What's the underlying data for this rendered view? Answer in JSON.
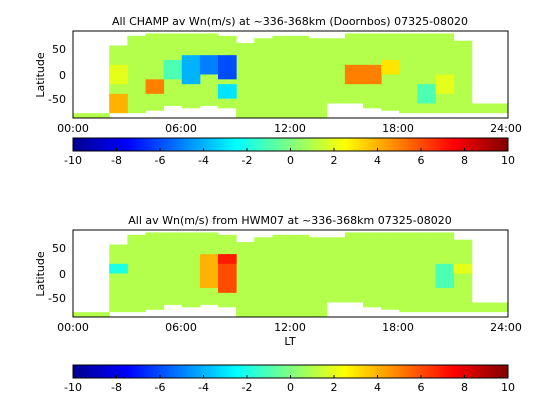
{
  "chart_data": [
    {
      "type": "heatmap",
      "title": "All CHAMP av Wn(m/s) at ~336-368km (Doornbos) 07325-08020",
      "xlabel": "",
      "ylabel": "Latitude",
      "xlim": [
        0,
        24
      ],
      "ylim": [
        -90,
        90
      ],
      "x_ticks": [
        "00:00",
        "06:00",
        "12:00",
        "18:00",
        "24:00"
      ],
      "y_ticks": [
        "-50",
        "0",
        "50"
      ],
      "colorbar": {
        "clim": [
          -10,
          10
        ],
        "ticks": [
          "-10",
          "-8",
          "-6",
          "-4",
          "-2",
          "0",
          "2",
          "4",
          "6",
          "8",
          "10"
        ]
      },
      "hours": [
        1,
        2,
        3,
        4,
        5,
        6,
        7,
        8,
        9,
        10,
        11,
        12,
        13,
        14,
        15,
        16,
        17,
        18,
        19,
        20,
        21,
        22,
        23,
        24
      ],
      "lat_extent": [
        [
          -90,
          -80
        ],
        [
          -90,
          -80
        ],
        [
          -80,
          60
        ],
        [
          -80,
          80
        ],
        [
          -75,
          85
        ],
        [
          -65,
          85
        ],
        [
          -70,
          85
        ],
        [
          -65,
          85
        ],
        [
          -70,
          80
        ],
        [
          -90,
          65
        ],
        [
          -90,
          75
        ],
        [
          -90,
          80
        ],
        [
          -90,
          80
        ],
        [
          -90,
          75
        ],
        [
          -60,
          75
        ],
        [
          -60,
          85
        ],
        [
          -70,
          85
        ],
        [
          -75,
          85
        ],
        [
          -80,
          85
        ],
        [
          -80,
          85
        ],
        [
          -80,
          85
        ],
        [
          -80,
          70
        ],
        [
          -80,
          -60
        ],
        [
          -80,
          -60
        ]
      ],
      "cells": [
        {
          "h": 3,
          "lat": [
            -80,
            -40
          ],
          "v": 4
        },
        {
          "h": 3,
          "lat": [
            -20,
            20
          ],
          "v": 2
        },
        {
          "h": 5,
          "lat": [
            -40,
            -10
          ],
          "v": 5
        },
        {
          "h": 6,
          "lat": [
            -10,
            30
          ],
          "v": -1
        },
        {
          "h": 7,
          "lat": [
            -20,
            40
          ],
          "v": -4
        },
        {
          "h": 8,
          "lat": [
            0,
            40
          ],
          "v": -5
        },
        {
          "h": 9,
          "lat": [
            -10,
            40
          ],
          "v": -6
        },
        {
          "h": 9,
          "lat": [
            -50,
            -20
          ],
          "v": -3
        },
        {
          "h": 16,
          "lat": [
            -20,
            20
          ],
          "v": 5
        },
        {
          "h": 17,
          "lat": [
            -20,
            20
          ],
          "v": 5
        },
        {
          "h": 18,
          "lat": [
            0,
            30
          ],
          "v": 3
        },
        {
          "h": 20,
          "lat": [
            -60,
            -20
          ],
          "v": -1
        },
        {
          "h": 21,
          "lat": [
            -40,
            0
          ],
          "v": 2
        }
      ]
    },
    {
      "type": "heatmap",
      "title": "All av Wn(m/s) from HWM07 at ~336-368km 07325-08020",
      "xlabel": "LT",
      "ylabel": "Latitude",
      "xlim": [
        0,
        24
      ],
      "ylim": [
        -90,
        90
      ],
      "x_ticks": [
        "00:00",
        "06:00",
        "12:00",
        "18:00",
        "24:00"
      ],
      "y_ticks": [
        "-50",
        "0",
        "50"
      ],
      "colorbar": {
        "clim": [
          -10,
          10
        ],
        "ticks": [
          "-10",
          "-8",
          "-6",
          "-4",
          "-2",
          "0",
          "2",
          "4",
          "6",
          "8",
          "10"
        ]
      },
      "hours": [
        1,
        2,
        3,
        4,
        5,
        6,
        7,
        8,
        9,
        10,
        11,
        12,
        13,
        14,
        15,
        16,
        17,
        18,
        19,
        20,
        21,
        22,
        23,
        24
      ],
      "lat_extent": [
        [
          -90,
          -80
        ],
        [
          -90,
          -80
        ],
        [
          -80,
          60
        ],
        [
          -80,
          80
        ],
        [
          -75,
          85
        ],
        [
          -65,
          85
        ],
        [
          -70,
          85
        ],
        [
          -65,
          85
        ],
        [
          -70,
          80
        ],
        [
          -90,
          65
        ],
        [
          -90,
          75
        ],
        [
          -90,
          80
        ],
        [
          -90,
          80
        ],
        [
          -90,
          75
        ],
        [
          -60,
          75
        ],
        [
          -60,
          85
        ],
        [
          -70,
          85
        ],
        [
          -75,
          85
        ],
        [
          -80,
          85
        ],
        [
          -80,
          85
        ],
        [
          -80,
          85
        ],
        [
          -80,
          70
        ],
        [
          -80,
          -60
        ],
        [
          -80,
          -60
        ]
      ],
      "cells": [
        {
          "h": 3,
          "lat": [
            0,
            20
          ],
          "v": -2
        },
        {
          "h": 5,
          "lat": [
            -20,
            20
          ],
          "v": 1
        },
        {
          "h": 7,
          "lat": [
            -40,
            40
          ],
          "v": 1
        },
        {
          "h": 8,
          "lat": [
            -30,
            40
          ],
          "v": 4
        },
        {
          "h": 9,
          "lat": [
            -40,
            40
          ],
          "v": 6
        },
        {
          "h": 9,
          "lat": [
            20,
            40
          ],
          "v": 7
        },
        {
          "h": 18,
          "lat": [
            0,
            30
          ],
          "v": 1
        },
        {
          "h": 21,
          "lat": [
            -30,
            20
          ],
          "v": -1
        },
        {
          "h": 22,
          "lat": [
            0,
            20
          ],
          "v": 2
        }
      ]
    }
  ]
}
